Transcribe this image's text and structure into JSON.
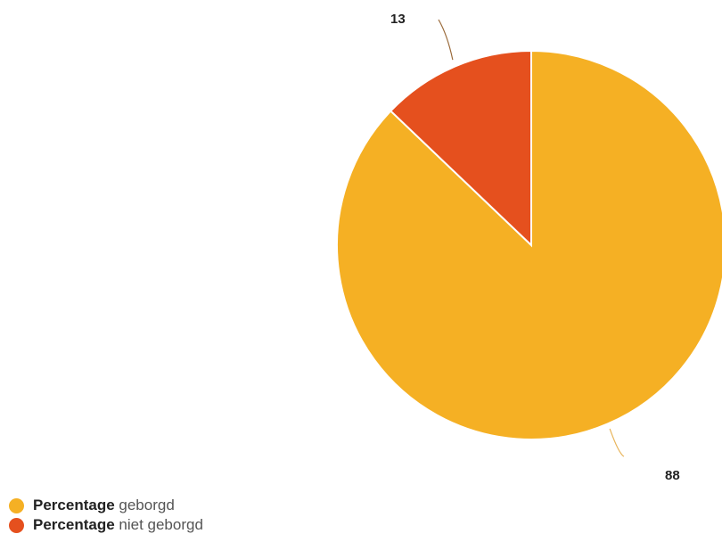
{
  "chart_data": {
    "type": "pie",
    "title": "",
    "slices": [
      {
        "name": "Percentage geborgd",
        "value": 88,
        "color": "#F5B024",
        "label": "88"
      },
      {
        "name": "Percentage niet geborgd",
        "value": 13,
        "color": "#E5501E",
        "label": "13"
      }
    ],
    "legend_position": "bottom-left"
  },
  "legend": {
    "items": [
      {
        "bold": "Percentage",
        "rest": " geborgd",
        "color": "#F5B024"
      },
      {
        "bold": "Percentage",
        "rest": " niet geborgd",
        "color": "#E5501E"
      }
    ]
  }
}
